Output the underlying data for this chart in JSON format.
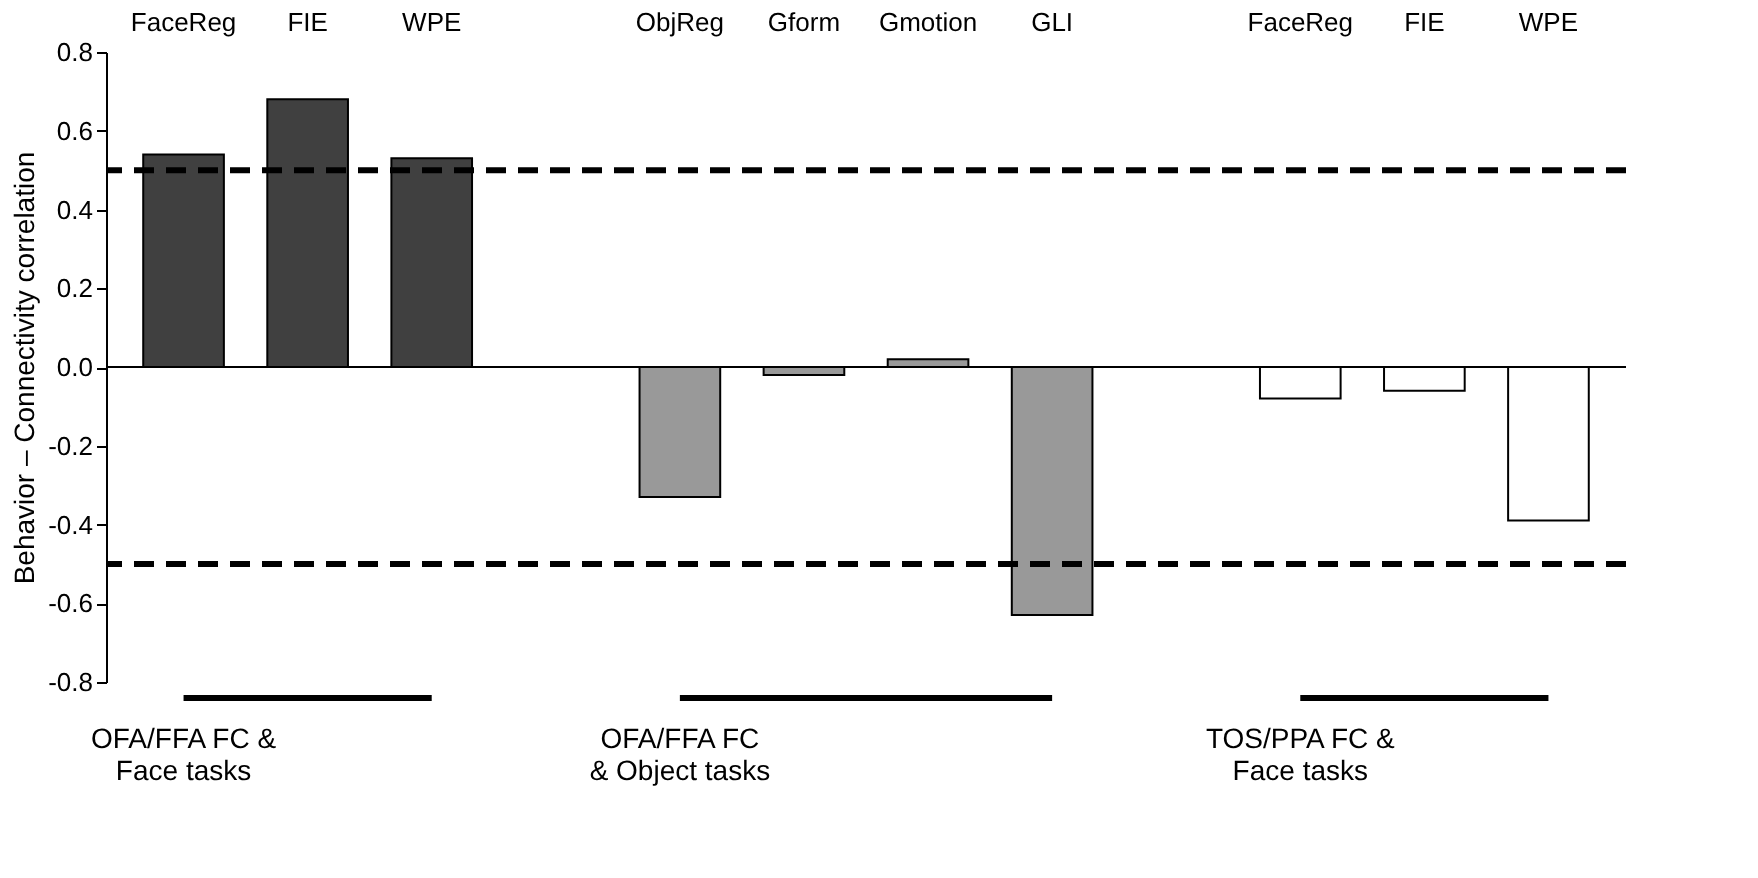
{
  "chart_data": {
    "type": "bar",
    "ylabel": "Behavior – Connectivity correlation",
    "categories": [
      "FaceReg",
      "FIE",
      "WPE",
      null,
      "ObjReg",
      "Gform",
      "Gmotion",
      "GLI",
      null,
      "FaceReg",
      "FIE",
      "WPE"
    ],
    "values": [
      0.54,
      0.68,
      0.53,
      null,
      -0.33,
      -0.02,
      0.02,
      -0.63,
      null,
      -0.08,
      -0.06,
      -0.39
    ],
    "colors": [
      "#404040",
      "#404040",
      "#404040",
      null,
      "#999999",
      "#999999",
      "#999999",
      "#999999",
      null,
      "#ffffff",
      "#ffffff",
      "#ffffff"
    ],
    "ylim": [
      -0.8,
      0.8
    ],
    "yticks": [
      {
        "value": -0.8,
        "label": "-0.8"
      },
      {
        "value": -0.6,
        "label": "-0.6"
      },
      {
        "value": -0.4,
        "label": "-0.4"
      },
      {
        "value": -0.2,
        "label": "-0.2"
      },
      {
        "value": 0,
        "label": "0.0"
      },
      0.2,
      0.4,
      0.6,
      0.8
    ],
    "ref_lines": [
      {
        "axis": "y",
        "value": 0.5,
        "line_style": "dashed",
        "color": "#000000"
      },
      {
        "axis": "y",
        "value": -0.5,
        "line_style": "dashed",
        "color": "#000000"
      }
    ],
    "annotations": [
      "OFA/FFA FC &\nFace tasks",
      "OFA/FFA FC\n& Object tasks",
      "TOS/PPA FC &\nFace tasks"
    ]
  }
}
